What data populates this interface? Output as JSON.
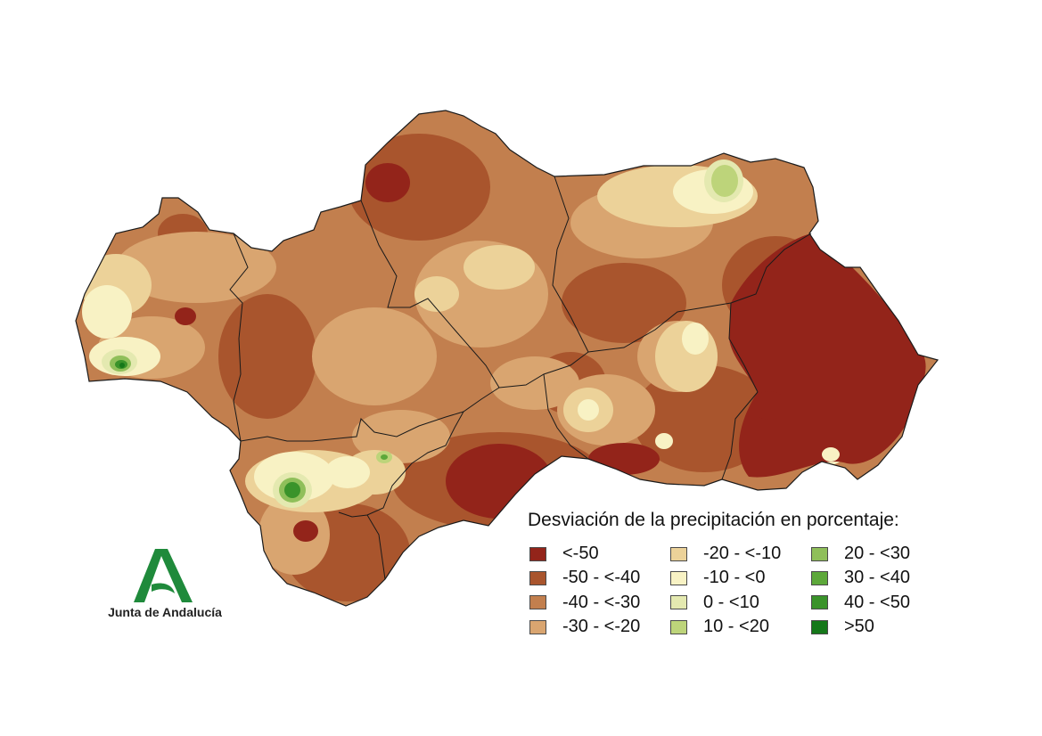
{
  "legend": {
    "title": "Desviación de la precipitación en porcentaje:",
    "items": [
      {
        "label": "<-50",
        "color": "#93241a"
      },
      {
        "label": "-50 - <-40",
        "color": "#a9552d"
      },
      {
        "label": "-40 - <-30",
        "color": "#c27f4e"
      },
      {
        "label": "-30 - <-20",
        "color": "#d9a570"
      },
      {
        "label": "-20 - <-10",
        "color": "#ecd299"
      },
      {
        "label": "-10 - <0",
        "color": "#f8f2c4"
      },
      {
        "label": "0 - <10",
        "color": "#e4e9b0"
      },
      {
        "label": "10 - <20",
        "color": "#bdd47a"
      },
      {
        "label": "20 - <30",
        "color": "#8fbf5a"
      },
      {
        "label": "30 - <40",
        "color": "#5da83a"
      },
      {
        "label": "40 - <50",
        "color": "#3a932a"
      },
      {
        "label": ">50",
        "color": "#15781a"
      }
    ]
  },
  "logo": {
    "text": "Junta de Andalucía",
    "color": "#1f8a3b"
  }
}
